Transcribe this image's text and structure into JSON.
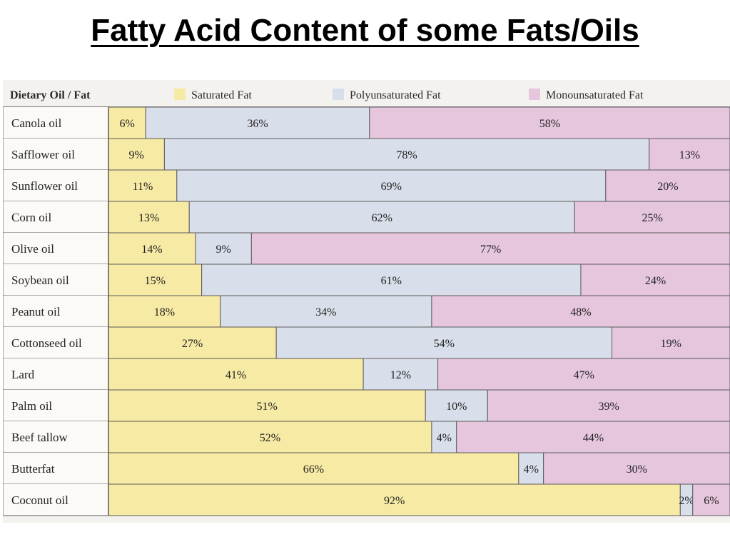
{
  "page": {
    "title": "Fatty Acid Content of some Fats/Oils"
  },
  "colors": {
    "saturated": "#f7eaa4",
    "polyunsaturated": "#d9dfea",
    "monounsaturated": "#e6c6dd",
    "grid": "#5a5a5a"
  },
  "chart_data": {
    "type": "bar",
    "orientation": "horizontal",
    "stacked": true,
    "percent_stacked": true,
    "title": "",
    "header_label": "Dietary Oil / Fat",
    "categories": [
      "Canola oil",
      "Safflower oil",
      "Sunflower oil",
      "Corn oil",
      "Olive oil",
      "Soybean oil",
      "Peanut oil",
      "Cottonseed oil",
      "Lard",
      "Palm oil",
      "Beef tallow",
      "Butterfat",
      "Coconut oil"
    ],
    "series": [
      {
        "name": "Saturated Fat",
        "color": "#f7eaa4",
        "values": [
          6,
          9,
          11,
          13,
          14,
          15,
          18,
          27,
          41,
          51,
          52,
          66,
          92
        ]
      },
      {
        "name": "Polyunsaturated Fat",
        "color": "#d9dfea",
        "values": [
          36,
          78,
          69,
          62,
          9,
          61,
          34,
          54,
          12,
          10,
          4,
          4,
          2
        ]
      },
      {
        "name": "Monounsaturated Fat",
        "color": "#e6c6dd",
        "values": [
          58,
          13,
          20,
          25,
          77,
          24,
          48,
          19,
          47,
          39,
          44,
          30,
          6
        ]
      }
    ],
    "value_labels": [
      [
        "6%",
        "36%",
        "58%"
      ],
      [
        "9%",
        "78%",
        "13%"
      ],
      [
        "11%",
        "69%",
        "20%"
      ],
      [
        "13%",
        "62%",
        "25%"
      ],
      [
        "14%",
        "9%",
        "77%"
      ],
      [
        "15%",
        "61%",
        "24%"
      ],
      [
        "18%",
        "34%",
        "48%"
      ],
      [
        "27%",
        "54%",
        "19%"
      ],
      [
        "41%",
        "12%",
        "47%"
      ],
      [
        "51%",
        "10%",
        "39%"
      ],
      [
        "52%",
        "4%",
        "44%"
      ],
      [
        "66%",
        "4%",
        "30%"
      ],
      [
        "92%",
        "2%",
        "6%"
      ]
    ],
    "legend_position": "top",
    "grid": false
  }
}
